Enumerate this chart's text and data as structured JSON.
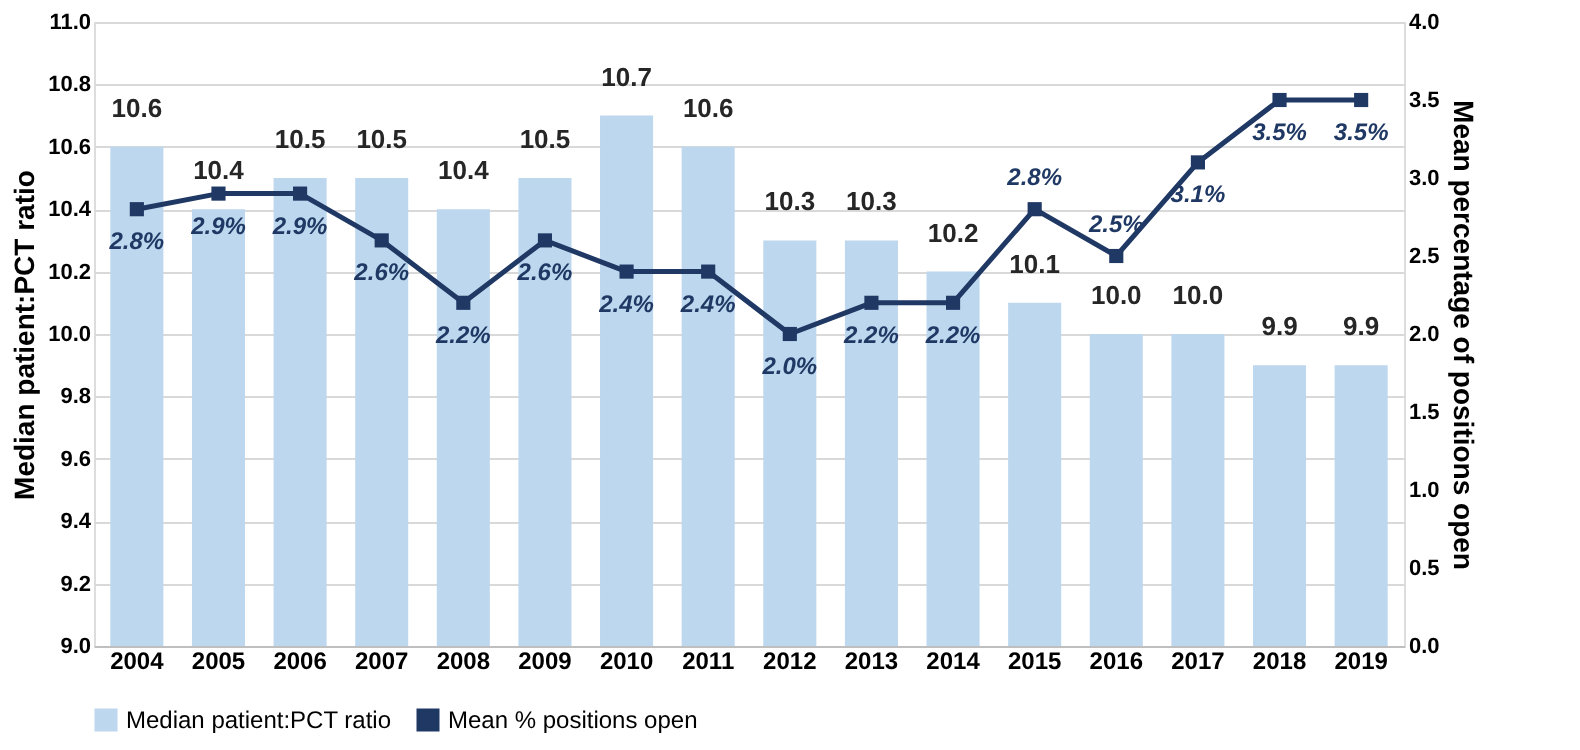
{
  "chart_data": {
    "type": "bar",
    "categories": [
      "2004",
      "2005",
      "2006",
      "2007",
      "2008",
      "2009",
      "2010",
      "2011",
      "2012",
      "2013",
      "2014",
      "2015",
      "2016",
      "2017",
      "2018",
      "2019"
    ],
    "ylabel": "Median patient:PCT ratio",
    "y2label": "Mean percentage of positions open",
    "series": [
      {
        "name": "Median patient:PCT ratio",
        "color": "#bdd7ee",
        "values": [
          10.6,
          10.4,
          10.5,
          10.5,
          10.4,
          10.5,
          10.7,
          10.6,
          10.3,
          10.3,
          10.2,
          10.1,
          10.0,
          10.0,
          9.9,
          9.9
        ],
        "value_labels": [
          "10.6",
          "10.4",
          "10.5",
          "10.5",
          "10.4",
          "10.5",
          "10.7",
          "10.6",
          "10.3",
          "10.3",
          "10.2",
          "10.1",
          "10.0",
          "10.0",
          "9.9",
          "9.9"
        ]
      },
      {
        "name": "Mean % positions open",
        "type": "line",
        "axis": "y2",
        "color": "#1f3864",
        "marker": "square",
        "values": [
          2.8,
          2.9,
          2.9,
          2.6,
          2.2,
          2.6,
          2.4,
          2.4,
          2.0,
          2.2,
          2.2,
          2.8,
          2.5,
          3.1,
          3.5,
          3.5
        ],
        "value_labels": [
          "2.8%",
          "2.9%",
          "2.9%",
          "2.6%",
          "2.2%",
          "2.6%",
          "2.4%",
          "2.4%",
          "2.0%",
          "2.2%",
          "2.2%",
          "2.8%",
          "2.5%",
          "3.1%",
          "3.5%",
          "3.5%"
        ]
      }
    ],
    "data_labels": true,
    "ylim": [
      9.0,
      11.0
    ],
    "yticks": [
      {
        "value": 9,
        "label": "9.0"
      },
      9.2,
      9.4,
      9.6,
      9.8,
      {
        "value": 10,
        "label": "10.0"
      },
      10.2,
      10.4,
      10.6,
      10.8,
      {
        "value": 11,
        "label": "11.0"
      }
    ],
    "y2lim": [
      0.0,
      4.0
    ],
    "y2ticks": [
      {
        "value": 0,
        "label": "0.0"
      },
      0.5,
      {
        "value": 1,
        "label": "1.0"
      },
      1.5,
      {
        "value": 2,
        "label": "2.0"
      },
      2.5,
      {
        "value": 3,
        "label": "3.0"
      },
      3.5,
      {
        "value": 4,
        "label": "4.0"
      }
    ],
    "grid": "y",
    "legend": "bottom"
  }
}
